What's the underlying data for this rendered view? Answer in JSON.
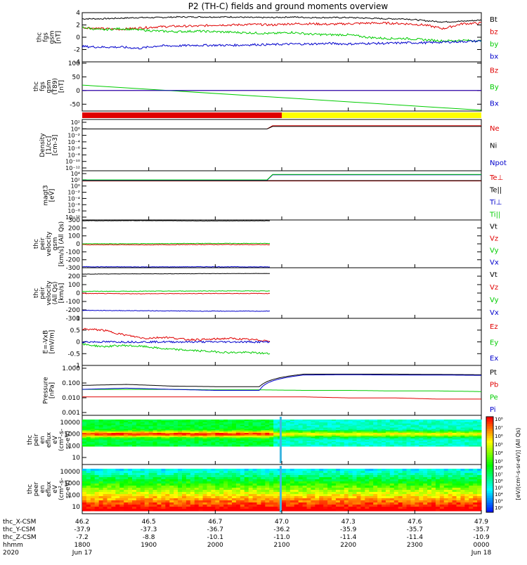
{
  "title": "P2 (TH-C) fields and ground moments overview",
  "colors": {
    "black": "#000000",
    "red": "#e00000",
    "green": "#00cc00",
    "blue": "#0000cc",
    "yellow": "#ffff00",
    "darkred": "#c00000",
    "gray": "#808080"
  },
  "chart_data": [
    {
      "type": "line",
      "panel": "fgs_gsm",
      "ylabel": [
        "thc",
        "fgs",
        "gsm",
        "[nT]"
      ],
      "ylim": [
        -4,
        4
      ],
      "yticks": [
        4,
        2,
        0,
        -2,
        -4
      ],
      "series": [
        {
          "name": "Bt",
          "color": "black",
          "values": [
            3.0,
            3.0,
            3.1,
            3.2,
            3.2,
            3.3,
            3.3,
            3.3,
            3.3,
            3.2,
            3.2,
            3.3,
            3.2,
            3.2,
            3.2,
            3.1,
            3.0,
            3.0,
            2.7,
            2.5,
            2.6,
            2.8
          ]
        },
        {
          "name": "bz",
          "color": "red",
          "values": [
            1.6,
            1.4,
            1.3,
            1.5,
            1.7,
            1.8,
            1.8,
            2.0,
            2.0,
            2.1,
            2.0,
            2.2,
            2.2,
            2.1,
            2.2,
            2.3,
            2.3,
            2.2,
            2.0,
            1.4,
            2.2,
            2.3
          ]
        },
        {
          "name": "by",
          "color": "green",
          "values": [
            1.6,
            1.2,
            1.4,
            1.2,
            1.0,
            0.9,
            1.0,
            0.9,
            0.8,
            0.7,
            0.6,
            0.8,
            0.5,
            0.4,
            0.4,
            0.0,
            -0.2,
            -0.2,
            -0.4,
            -0.6,
            -0.5,
            -0.6
          ]
        },
        {
          "name": "bx",
          "color": "blue",
          "values": [
            -1.5,
            -1.6,
            -1.6,
            -1.8,
            -1.4,
            -1.4,
            -1.3,
            -1.3,
            -1.3,
            -1.2,
            -1.2,
            -1.1,
            -1.1,
            -1.0,
            -1.1,
            -1.0,
            -1.0,
            -0.9,
            -0.9,
            -0.8,
            -0.7,
            -0.6
          ]
        }
      ]
    },
    {
      "type": "line",
      "panel": "fgs_gsm_model",
      "ylabel": [
        "thc",
        "fgs",
        "gsm",
        "(T89)",
        "[nT]"
      ],
      "ylim": [
        -75,
        105
      ],
      "yticks": [
        100,
        50,
        0,
        -50
      ],
      "series": [
        {
          "name": "Bz",
          "color": "red",
          "values": [
            0,
            0
          ]
        },
        {
          "name": "By",
          "color": "green",
          "values": [
            20,
            -72
          ]
        },
        {
          "name": "Bx",
          "color": "blue",
          "values": [
            0,
            0
          ]
        }
      ]
    },
    {
      "type": "bar-strip",
      "panel": "mode",
      "segments": [
        {
          "from": 0,
          "to": 0.5,
          "color": "red"
        },
        {
          "from": 0.5,
          "to": 1,
          "color": "yellow"
        }
      ]
    },
    {
      "type": "line",
      "panel": "density",
      "scale": "log",
      "ylabel": [
        "Density",
        "[1/cc]",
        "[cm-3]"
      ],
      "ylim": [
        -12,
        2
      ],
      "yticklabels": [
        "10²",
        "10⁰",
        "10⁻²",
        "10⁻⁴",
        "10⁻⁶",
        "10⁻⁸",
        "10⁻¹⁰",
        "10⁻¹²"
      ],
      "series": [
        {
          "name": "Ne",
          "color": "red",
          "values": [
            -0.6,
            -0.6,
            0.3,
            0.3
          ]
        },
        {
          "name": "Ni",
          "color": "black",
          "values": [
            -0.6,
            -0.6,
            0.1,
            0.1
          ]
        },
        {
          "name": "Npot",
          "color": "blue",
          "values": []
        }
      ]
    },
    {
      "type": "line",
      "panel": "temperature",
      "scale": "log",
      "ylabel": [
        "magt3",
        "[eV]"
      ],
      "ylim": [
        -10,
        4.5
      ],
      "yticklabels": [
        "10⁴",
        "10²",
        "10⁰",
        "10⁻²",
        "10⁻⁴",
        "10⁻⁶",
        "10⁻⁸",
        "10⁻¹⁰"
      ],
      "series": [
        {
          "name": "Te⊥",
          "color": "red",
          "values": [
            1.5,
            1.5
          ]
        },
        {
          "name": "Te||",
          "color": "black",
          "values": [
            1.6,
            1.6
          ]
        },
        {
          "name": "Ti⊥",
          "color": "blue",
          "values": [
            1.7,
            1.7,
            3.3,
            3.3
          ]
        },
        {
          "name": "Ti||",
          "color": "green",
          "values": [
            1.8,
            1.8,
            3.4,
            3.4
          ]
        }
      ]
    },
    {
      "type": "line",
      "panel": "peir_velocity_gsm",
      "ylabel": [
        "thc",
        "peir",
        "velocity",
        "gsm",
        "[km/s] (All Qs)"
      ],
      "ylim": [
        -300,
        300
      ],
      "yticks": [
        300,
        200,
        100,
        0,
        -100,
        -200,
        -300
      ],
      "series": [
        {
          "name": "Vt",
          "color": "black",
          "values": [
            290,
            292,
            288,
            290
          ]
        },
        {
          "name": "Vz",
          "color": "red",
          "values": [
            -10,
            -12,
            -8,
            -10
          ]
        },
        {
          "name": "Vy",
          "color": "green",
          "values": [
            0,
            2,
            5,
            5
          ]
        },
        {
          "name": "Vx",
          "color": "blue",
          "values": [
            -288,
            -290,
            -288,
            -290
          ]
        }
      ]
    },
    {
      "type": "line",
      "panel": "peir_velocity_dsl",
      "ylabel": [
        "thc",
        "peir",
        "velocity",
        "(All Qs)",
        "[km/s]"
      ],
      "ylim": [
        -300,
        300
      ],
      "yticks": [
        200,
        100,
        0,
        -100,
        -200,
        -300
      ],
      "series": [
        {
          "name": "Vt",
          "color": "black",
          "values": [
            225,
            228,
            230,
            232
          ]
        },
        {
          "name": "Vz",
          "color": "red",
          "values": [
            -5,
            -8,
            -5,
            -5
          ]
        },
        {
          "name": "Vy",
          "color": "green",
          "values": [
            20,
            22,
            25,
            25
          ]
        },
        {
          "name": "Vx",
          "color": "blue",
          "values": [
            -205,
            -210,
            -215,
            -215
          ]
        }
      ]
    },
    {
      "type": "line",
      "panel": "efield",
      "ylabel": [
        "E=-VxB",
        "[mV/m]"
      ],
      "ylim": [
        -1.0,
        1.0
      ],
      "yticks": [
        1.0,
        0.5,
        0.0,
        -0.5,
        -1.0
      ],
      "series": [
        {
          "name": "Ez",
          "color": "red",
          "values": [
            0.55,
            0.5,
            0.3,
            0.15,
            0.2,
            0.1,
            0.1,
            0.15,
            0.1,
            0.05
          ]
        },
        {
          "name": "Ey",
          "color": "green",
          "values": [
            -0.1,
            -0.2,
            -0.15,
            -0.2,
            -0.3,
            -0.35,
            -0.4,
            -0.45,
            -0.45,
            -0.5
          ]
        },
        {
          "name": "Ex",
          "color": "blue",
          "values": [
            0.0,
            0.0,
            0.0,
            0.0,
            0.0,
            0.0,
            0.0,
            0.0,
            0.0,
            0.0
          ]
        }
      ]
    },
    {
      "type": "line",
      "panel": "pressure",
      "scale": "log",
      "ylabel": [
        "Pressure",
        "[nPa]"
      ],
      "ylim": [
        0.0001,
        1.0
      ],
      "yticklabels": [
        "1.000",
        "0.100",
        "0.010",
        "0.001"
      ],
      "series": [
        {
          "name": "Pt",
          "color": "black",
          "values": [
            0.025,
            0.03,
            0.022,
            0.02,
            0.02,
            0.2,
            0.2,
            0.2,
            0.19,
            0.18
          ]
        },
        {
          "name": "Pb",
          "color": "red",
          "values": [
            0.003,
            0.003,
            0.003,
            0.003,
            0.003,
            0.003,
            0.0025,
            0.0025,
            0.002,
            0.002
          ]
        },
        {
          "name": "Pe",
          "color": "green",
          "values": [
            0.012,
            0.012,
            0.012,
            0.011,
            0.011,
            0.01,
            0.01,
            0.009,
            0.009,
            0.008
          ]
        },
        {
          "name": "Pi",
          "color": "blue",
          "values": [
            0.012,
            0.015,
            0.012,
            0.01,
            0.01,
            0.17,
            0.18,
            0.17,
            0.17,
            0.16
          ]
        }
      ]
    },
    {
      "type": "heatmap",
      "panel": "peir_eflux",
      "ylabel": [
        "thc",
        "peir",
        "en",
        "eflux",
        "eV",
        "(cm²-s-",
        "sr-eV)"
      ],
      "yticklabels": [
        "10000",
        "1000",
        "100",
        "10"
      ],
      "ylim": [
        5,
        20000
      ]
    },
    {
      "type": "heatmap",
      "panel": "peer_eflux",
      "ylabel": [
        "thc",
        "peer",
        "en",
        "eflux",
        "eV",
        "(cm²-s-",
        "sr-eV)"
      ],
      "yticklabels": [
        "10000",
        "1000",
        "100",
        "10"
      ],
      "ylim": [
        5,
        20000
      ]
    }
  ],
  "colorbar": {
    "label": "[eV/(cm²-s-sr-eV)] (All Qs)",
    "ticklabels_top": [
      "10⁸",
      "10⁷",
      "10⁶",
      "10⁵",
      "10⁴",
      "10³"
    ],
    "ticklabels_bottom": [
      "10⁸",
      "10⁷",
      "10⁶",
      "10⁵",
      "10⁴",
      "10³",
      "10²"
    ]
  },
  "xaxis": {
    "rows": [
      {
        "label": "thc_X-CSM",
        "values": [
          "46.2",
          "46.5",
          "46.7",
          "47.0",
          "47.3",
          "47.6",
          "47.9"
        ]
      },
      {
        "label": "thc_Y-CSM",
        "values": [
          "-37.9",
          "-37.3",
          "-36.7",
          "-36.2",
          "-35.9",
          "-35.7",
          "-35.7"
        ]
      },
      {
        "label": "thc_Z-CSM",
        "values": [
          "-7.2",
          "-8.8",
          "-10.1",
          "-11.0",
          "-11.4",
          "-11.4",
          "-10.9"
        ]
      },
      {
        "label": "hhmm",
        "values": [
          "1800",
          "1900",
          "2000",
          "2100",
          "2200",
          "2300",
          "0000"
        ]
      },
      {
        "label": "2020",
        "values": [
          "Jun 17",
          "",
          "",
          "",
          "",
          "",
          "Jun 18"
        ]
      }
    ]
  }
}
